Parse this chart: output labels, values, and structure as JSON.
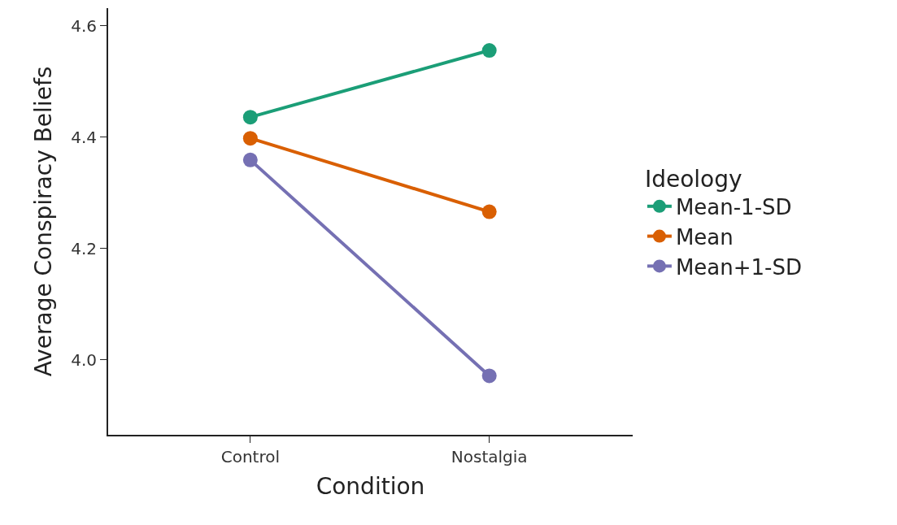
{
  "chart_data": {
    "type": "line",
    "xlabel": "Condition",
    "ylabel": "Average Conspiracy Beliefs",
    "legend_title": "Ideology",
    "categories": [
      "Control",
      "Nostalgia"
    ],
    "series": [
      {
        "name": "Mean-1-SD",
        "color": "#1b9e77",
        "values": [
          4.436,
          4.556
        ]
      },
      {
        "name": "Mean",
        "color": "#d95f02",
        "values": [
          4.398,
          4.266
        ]
      },
      {
        "name": "Mean+1-SD",
        "color": "#7570b3",
        "values": [
          4.359,
          3.971
        ]
      }
    ],
    "ylim": [
      3.865,
      4.632
    ],
    "yticks": [
      {
        "value": 4.0,
        "label": "4.0"
      },
      {
        "value": 4.2,
        "label": "4.2"
      },
      {
        "value": 4.4,
        "label": "4.4"
      },
      {
        "value": 4.6,
        "label": "4.6"
      }
    ],
    "legend": "right",
    "marker": "circle",
    "line_style": "solid"
  }
}
